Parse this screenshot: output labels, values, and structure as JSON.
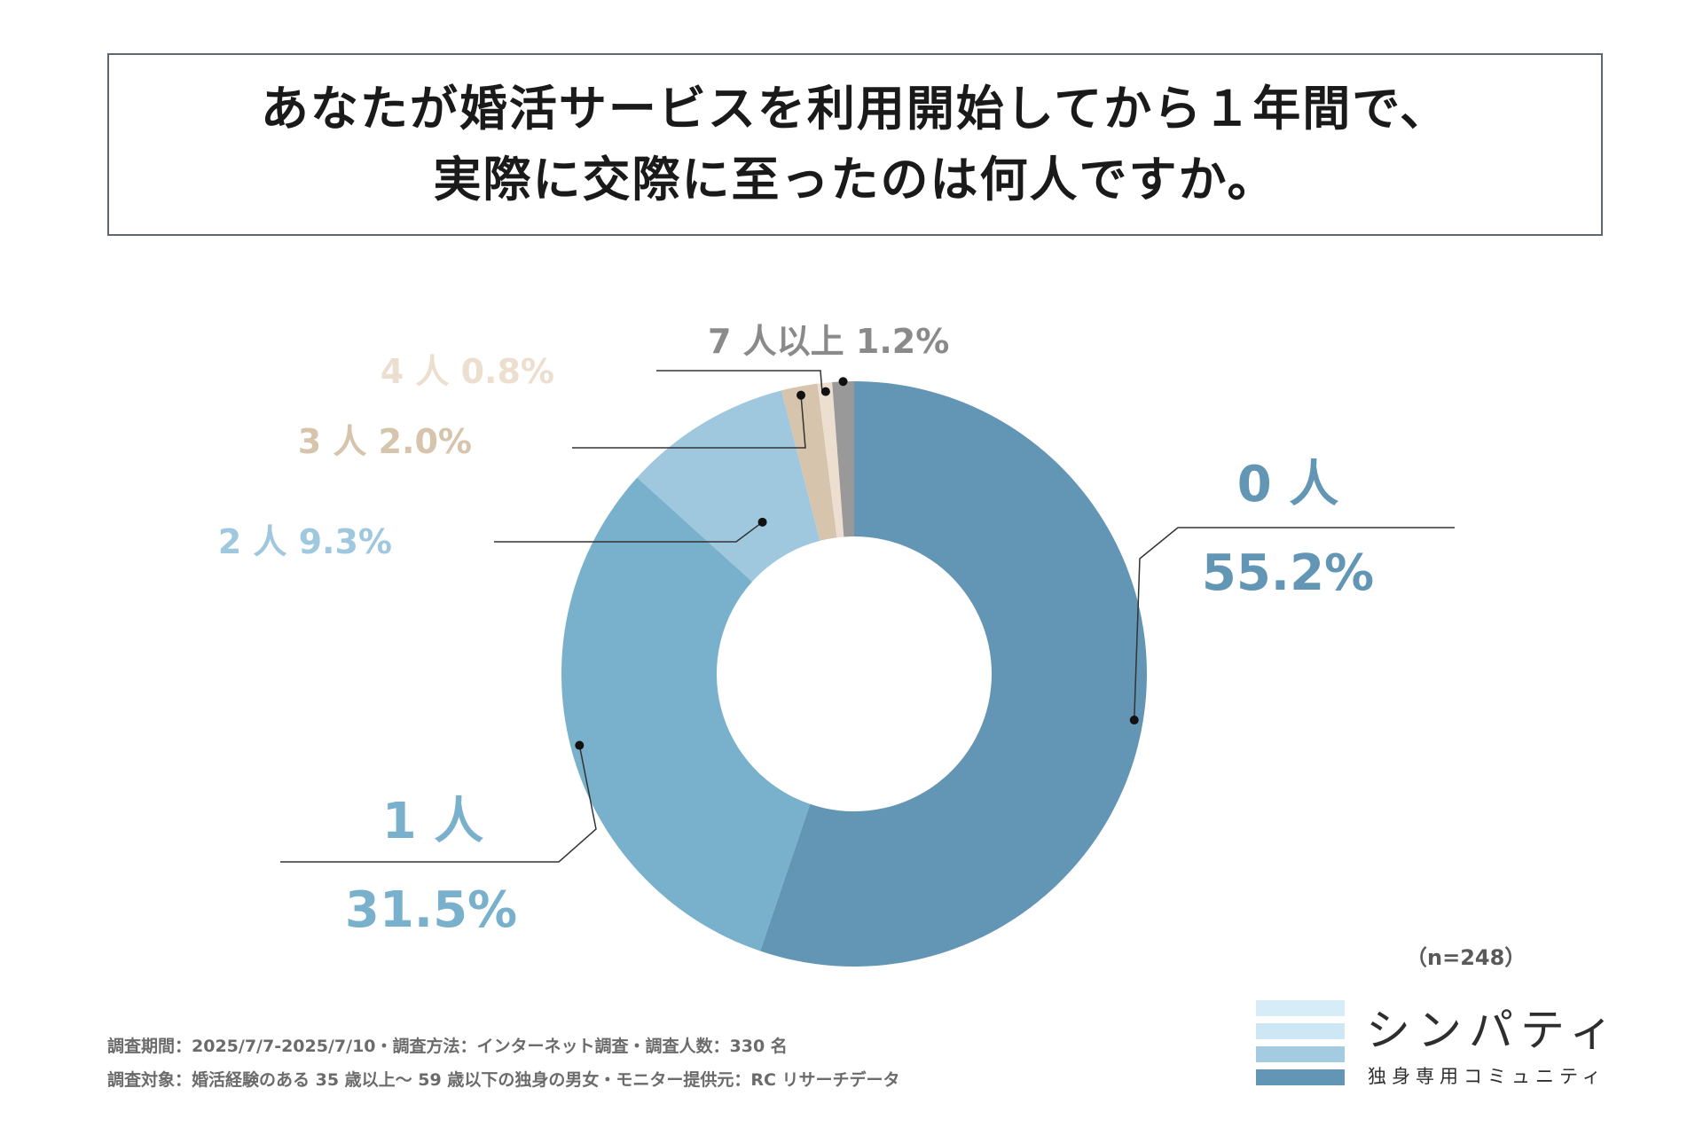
{
  "header": {
    "title_line1": "あなたが婚活サービスを利用開始してから１年間で、",
    "title_line2": "実際に交際に至ったのは何人ですか。"
  },
  "chart_data": {
    "type": "pie",
    "donut": true,
    "categories": [
      "0 人",
      "1 人",
      "2 人",
      "3 人",
      "4 人",
      "7 人以上"
    ],
    "values": [
      55.2,
      31.5,
      9.3,
      2.0,
      0.8,
      1.2
    ],
    "value_labels": [
      "55.2%",
      "31.5%",
      "9.3%",
      "2.0%",
      "0.8%",
      "1.2%"
    ],
    "colors": [
      "#6396b5",
      "#79b0cb",
      "#9fc8df",
      "#d7c4ad",
      "#ecdfd0",
      "#999999"
    ],
    "label_colors": [
      "#6396b5",
      "#79b0cb",
      "#9fc8df",
      "#d7c4ad",
      "#ecdfd0",
      "#8a8a8a"
    ],
    "legend": "none"
  },
  "sample_note": "（n=248）",
  "footer": {
    "line1": "調査期間：2025/7/7-2025/7/10・調査方法：インターネット調査・調査人数：330 名",
    "line2": "調査対象：婚活経験のある 35 歳以上～ 59 歳以下の独身の男女・モニター提供元：RC リサーチデータ"
  },
  "logo": {
    "name": "シンパティ",
    "tagline": "独身専用コミュニティ",
    "bar_colors": [
      "#d6ecf7",
      "#cde7f5",
      "#a5cbe0",
      "#6396b5"
    ]
  }
}
